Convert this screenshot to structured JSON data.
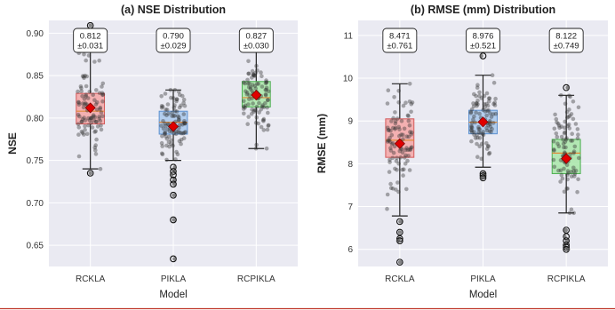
{
  "chart_data": [
    {
      "type": "box",
      "title": "(a) NSE Distribution",
      "xlabel": "Model",
      "ylabel": "NSE",
      "ylim": [
        0.625,
        0.915
      ],
      "yticks": [
        0.65,
        0.7,
        0.75,
        0.8,
        0.85,
        0.9
      ],
      "ytick_labels": [
        "0.65",
        "0.70",
        "0.75",
        "0.80",
        "0.85",
        "0.90"
      ],
      "grid": true,
      "categories": [
        "RCKLA",
        "PIKLA",
        "RCPIKLA"
      ],
      "series": [
        {
          "color": "#f4a6a6",
          "edge": "#d45a5a",
          "q1": 0.793,
          "median": 0.808,
          "q3": 0.829,
          "whisker_low": 0.74,
          "whisker_high": 0.878,
          "mean": 0.812,
          "outliers": [
            0.735,
            0.909
          ],
          "annotation_mean": "0.812",
          "annotation_std": "±0.031"
        },
        {
          "color": "#a8c8ec",
          "edge": "#5a8fcf",
          "q1": 0.781,
          "median": 0.795,
          "q3": 0.808,
          "whisker_low": 0.75,
          "whisker_high": 0.833,
          "mean": 0.79,
          "outliers": [
            0.742,
            0.737,
            0.733,
            0.727,
            0.722,
            0.709,
            0.68,
            0.634
          ],
          "annotation_mean": "0.790",
          "annotation_std": "±0.029"
        },
        {
          "color": "#a8e6a8",
          "edge": "#4caf50",
          "q1": 0.813,
          "median": 0.824,
          "q3": 0.843,
          "whisker_low": 0.764,
          "whisker_high": 0.882,
          "mean": 0.827,
          "outliers": [],
          "annotation_mean": "0.827",
          "annotation_std": "±0.030"
        }
      ]
    },
    {
      "type": "box",
      "title": "(b) RMSE (mm) Distribution",
      "xlabel": "Model",
      "ylabel": "RMSE (mm)",
      "ylim": [
        5.6,
        11.35
      ],
      "yticks": [
        6,
        7,
        8,
        9,
        10,
        11
      ],
      "ytick_labels": [
        "6",
        "7",
        "8",
        "9",
        "10",
        "11"
      ],
      "grid": true,
      "categories": [
        "RCKLA",
        "PIKLA",
        "RCPIKLA"
      ],
      "series": [
        {
          "color": "#f4a6a6",
          "edge": "#d45a5a",
          "q1": 8.15,
          "median": 8.55,
          "q3": 9.05,
          "whisker_low": 6.78,
          "whisker_high": 9.87,
          "mean": 8.471,
          "outliers": [
            6.65,
            6.4,
            6.25,
            6.2,
            5.7
          ],
          "annotation_mean": "8.471",
          "annotation_std": "±0.761"
        },
        {
          "color": "#a8c8ec",
          "edge": "#5a8fcf",
          "q1": 8.7,
          "median": 8.97,
          "q3": 9.25,
          "whisker_low": 7.92,
          "whisker_high": 10.07,
          "mean": 8.976,
          "outliers": [
            10.52,
            7.77,
            7.72,
            7.67
          ],
          "annotation_mean": "8.976",
          "annotation_std": "±0.521"
        },
        {
          "color": "#a8e6a8",
          "edge": "#4caf50",
          "q1": 7.77,
          "median": 8.25,
          "q3": 8.57,
          "whisker_low": 6.85,
          "whisker_high": 9.6,
          "mean": 8.122,
          "outliers": [
            9.78,
            6.45,
            6.3,
            6.2,
            6.1,
            6.05,
            6.0
          ],
          "annotation_mean": "8.122",
          "annotation_std": "±0.749"
        }
      ]
    }
  ]
}
